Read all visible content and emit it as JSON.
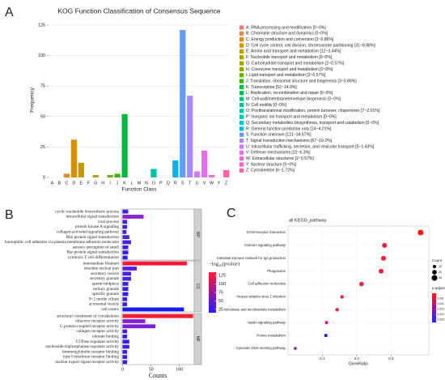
{
  "chart_data": [
    {
      "type": "bar",
      "panel_label": "A",
      "title": "KOG Function Classification of Consensus Sequence",
      "categories": [
        "A",
        "B",
        "C",
        "D",
        "E",
        "F",
        "G",
        "H",
        "I",
        "J",
        "K",
        "L",
        "M",
        "N",
        "O",
        "P",
        "Q",
        "R",
        "S",
        "T",
        "U",
        "V",
        "W",
        "Y",
        "Z"
      ],
      "values": [
        0,
        0,
        3,
        31,
        12,
        0,
        2,
        0,
        2,
        3,
        52,
        0,
        0,
        0,
        7,
        0,
        0,
        14,
        121,
        67,
        5,
        22,
        2,
        0,
        6
      ],
      "colors": [
        "#F8766D",
        "#F07E4E",
        "#E68613",
        "#D89000",
        "#C99800",
        "#B79F00",
        "#A3A500",
        "#8AAB00",
        "#6BB100",
        "#39B600",
        "#00BA38",
        "#00BC59",
        "#00BF7D",
        "#00C097",
        "#00C1AA",
        "#00BFC4",
        "#00BCD8",
        "#00B4F0",
        "#619CFF",
        "#A58AFF",
        "#C77CFF",
        "#E76BF3",
        "#F564E3",
        "#FD61D1",
        "#FF67A4"
      ],
      "legend_labels": [
        "A: RNA processing and modification [0~0%]",
        "B: Chromatin structure and dynamics [0~0%]",
        "C: Energy production and conversion [3~0.86%]",
        "D: Cell cycle control, cell division, chromosome partitioning [31~8.88%]",
        "E: Amino acid transport and metabolism [12~3.44%]",
        "F: Nucleotide transport and metabolism [0~0%]",
        "G: Carbohydrate transport and metabolism [2~0.57%]",
        "H: Coenzyme transport and metabolism [0~0%]",
        "I: Lipid transport and metabolism [2~0.57%]",
        "J: Translation, ribosomal structure and biogenesis [3~0.86%]",
        "K: Transcription [52~14.9%]",
        "L: Replication, recombination and repair [0~0%]",
        "M: Cell wall/membrane/envelope biogenesis [0~0%]",
        "N: Cell motility [0~0%]",
        "O: Posttranslational modification, protein turnover, chaperones [7~2.01%]",
        "P: Inorganic ion transport and metabolism [0~0%]",
        "Q: Secondary metabolites biosynthesis, transport and catabolism [0~0%]",
        "R: General function prediction only [14~4.01%]",
        "S: Function unknown [121~34.67%]",
        "T: Signal transduction mechanisms [67~19.2%]",
        "U: Intracellular trafficking, secretion, and vesicular transport [5~1.43%]",
        "V: Defense mechanisms [22~6.3%]",
        "W: Extracellular structures [2~0.57%]",
        "Y: Nuclear structure [0~0%]",
        "Z: Cytoskeleton [6~1.72%]"
      ],
      "xlabel": "Function Class",
      "ylabel": "Frequency",
      "ylim": [
        0,
        127
      ],
      "yticks": [
        0,
        25,
        50,
        75,
        100,
        125
      ],
      "grid": true
    },
    {
      "type": "hbar",
      "panel_label": "B",
      "xlabel": "Counts",
      "xlim": [
        -2,
        126
      ],
      "xticks": [
        0,
        50,
        100
      ],
      "facets": [
        {
          "name": "BP",
          "categories": [
            "cyclic nucleotide biosynthetic process",
            "intracellular signal transduction",
            "viral process",
            "protein kinase A signaling",
            "collagen-activated signaling pathway",
            "Rho protein signal transduction",
            "homophilic cell adhesion via plasma membrane adhesion molecules",
            "sensory perception of smell",
            "Ras protein signal transduction",
            "cytotoxic T cell differentiation"
          ],
          "values": [
            10,
            37,
            8,
            8,
            7,
            12,
            15,
            10,
            10,
            9
          ],
          "colors": [
            "#3a1df2",
            "#8a22d0",
            "#3a1df2",
            "#3a1df2",
            "#3a1df2",
            "#4a1fe8",
            "#4a1fe8",
            "#3a1df2",
            "#3a1df2",
            "#3a1df2"
          ]
        },
        {
          "name": "CC",
          "categories": [
            "intermediate filament",
            "obsolete nuclear part",
            "secretory vesicle",
            "secretory granule",
            "sperm midpiece",
            "tertiary granule",
            "specific granule",
            "9+2 motile cilium",
            "acrosomal vesicle",
            "cell cortex"
          ],
          "values": [
            113,
            25,
            15,
            15,
            10,
            10,
            10,
            8,
            8,
            108
          ],
          "colors": [
            "#ff1a3c",
            "#5a20e0",
            "#4a1fe8",
            "#4a1fe8",
            "#3a1df2",
            "#3a1df2",
            "#3a1df2",
            "#3a1df2",
            "#3a1df2",
            "#1a1aff"
          ]
        },
        {
          "name": "MF",
          "categories": [
            "structural constituent of cytoskeleton",
            "olfactory receptor activity",
            "G protein-coupled receptor activity",
            "collagen receptor activity",
            "odorant binding",
            "GTPase regulator activity",
            "nucleoside-triphosphatase regulator activity",
            "immunoglobulin receptor binding",
            "type I interferon receptor binding",
            "nuclear export signal receptor activity"
          ],
          "values": [
            124,
            40,
            58,
            8,
            8,
            12,
            12,
            8,
            8,
            8
          ],
          "colors": [
            "#ff1a30",
            "#8a22d0",
            "#7a22d8",
            "#3a1df2",
            "#3a1df2",
            "#3a1df2",
            "#3a1df2",
            "#3a1df2",
            "#3a1df2",
            "#3a1df2"
          ]
        }
      ],
      "colorbar": {
        "title": "−log₁₀(pvalue)",
        "lim": [
          15,
          135
        ],
        "ticks": [
          25,
          50,
          75,
          100,
          125
        ],
        "colors": [
          "#2a1aff",
          "#ff1a30"
        ]
      }
    },
    {
      "type": "dot",
      "panel_label": "C",
      "title": "all KEGG_pathway",
      "xlabel": "GeneRatio",
      "categories": [
        "ECM-receptor interaction",
        "Calcium signaling pathway",
        "Intestinal immune network for IgA production",
        "Phagosome",
        "Cell adhesion molecules",
        "Herpes simplex virus 1 infection",
        "Nicotinate and nicotinamide metabolism",
        "Apelin signaling pathway",
        "Purine metabolism",
        "Cytosolic DNA-sensing pathway"
      ],
      "x": [
        0.386,
        0.281,
        0.278,
        0.271,
        0.214,
        0.157,
        0.143,
        0.112,
        0.11,
        0.021
      ],
      "sizes": [
        30,
        22,
        22,
        21,
        18,
        12,
        12,
        10,
        10,
        8
      ],
      "colors": [
        "#ff1a1a",
        "#f0203a",
        "#f0203a",
        "#ee2040",
        "#f0203a",
        "#e82060",
        "#e02070",
        "#d82090",
        "#2020ff",
        "#9020d0"
      ],
      "xlim": [
        0,
        0.41
      ],
      "xticks": [
        0.1,
        0.2,
        0.3
      ],
      "grid": true,
      "size_legend": {
        "title": "Count",
        "values": [
          10,
          20,
          30
        ]
      },
      "color_legend": {
        "title": "p.adjust",
        "lim": [
          0,
          0.0055
        ],
        "ticks": [
          0.001,
          0.002,
          0.003,
          0.004,
          0.005
        ],
        "colors": [
          "#ff1a1a",
          "#2020ff"
        ]
      }
    }
  ]
}
